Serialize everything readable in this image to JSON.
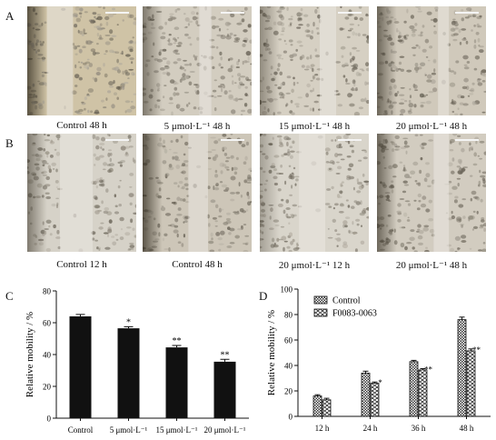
{
  "panels": {
    "A": {
      "letter": "A",
      "images": [
        {
          "caption": "Control 48 h"
        },
        {
          "caption": "5 μmol·L⁻¹ 48 h"
        },
        {
          "caption": "15 μmol·L⁻¹ 48 h"
        },
        {
          "caption": "20 μmol·L⁻¹ 48 h"
        }
      ]
    },
    "B": {
      "letter": "B",
      "images": [
        {
          "caption": "Control 12 h"
        },
        {
          "caption": "Control 48 h"
        },
        {
          "caption": "20 μmol·L⁻¹ 12 h"
        },
        {
          "caption": "20 μmol·L⁻¹ 48 h"
        }
      ]
    }
  },
  "chart_data": [
    {
      "letter": "C",
      "type": "bar",
      "categories": [
        "Control",
        "5 μmol·L⁻¹",
        "15 μmol·L⁻¹",
        "20 μmol·L⁻¹"
      ],
      "values": [
        64,
        56.5,
        44.5,
        35.5
      ],
      "errors": [
        1.2,
        1.0,
        1.2,
        1.5
      ],
      "significance": [
        "",
        "*",
        "**",
        "**"
      ],
      "ylabel": "Relative mobility / %",
      "xlabel": "",
      "ylim": [
        0,
        80
      ],
      "yticks": [
        0,
        20,
        40,
        60,
        80
      ],
      "bar_color": "#111111"
    },
    {
      "letter": "D",
      "type": "bar",
      "categories": [
        "12 h",
        "24 h",
        "36 h",
        "48 h"
      ],
      "series": [
        {
          "name": "Control",
          "values": [
            16,
            34,
            43,
            76
          ],
          "errors": [
            1.0,
            1.5,
            1.0,
            2.0
          ],
          "significance": [
            "",
            "",
            "",
            ""
          ]
        },
        {
          "name": "F0083-0063",
          "values": [
            13,
            26,
            36.5,
            51.5
          ],
          "errors": [
            1.2,
            1.0,
            1.0,
            1.5
          ],
          "significance": [
            "",
            "*",
            "**",
            "**"
          ]
        }
      ],
      "ylabel": "Relative mobility / %",
      "xlabel": "",
      "ylim": [
        0,
        100
      ],
      "yticks": [
        0,
        20,
        40,
        60,
        80,
        100
      ],
      "legend_position": "top-left"
    }
  ]
}
